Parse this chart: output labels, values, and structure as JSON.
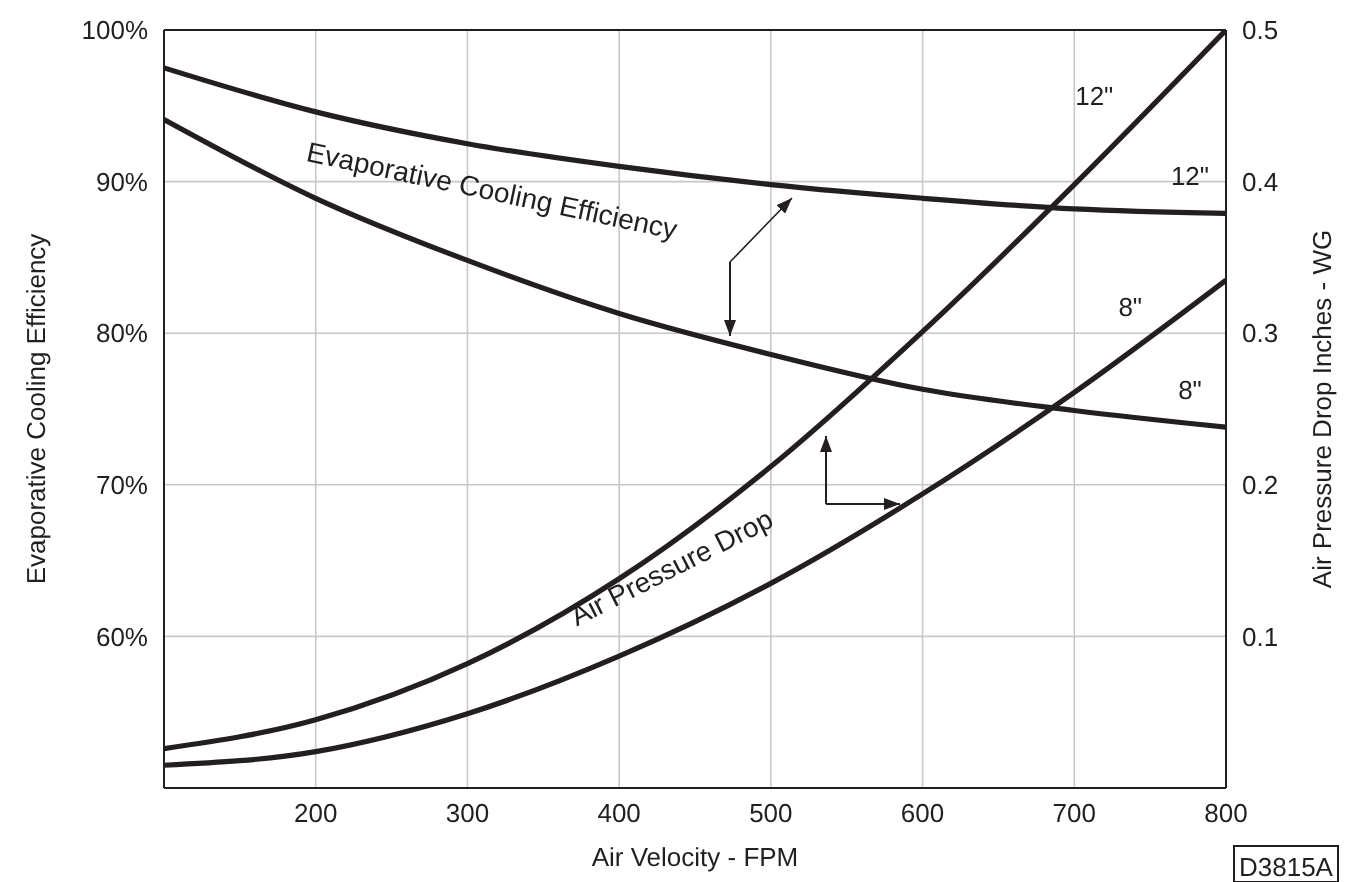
{
  "chart_data": {
    "type": "line",
    "xlabel": "Air Velocity - FPM",
    "ylabel": "Evaporative Cooling Efficiency",
    "y2label": "Air Pressure Drop Inches - WG",
    "x": [
      100,
      200,
      300,
      400,
      500,
      600,
      700,
      800
    ],
    "series": [
      {
        "name": "12\"",
        "color": "#231f20",
        "values": [
          97.5,
          94.6,
          92.5,
          91.0,
          89.8,
          88.9,
          88.2,
          87.9
        ]
      },
      {
        "name": "8\"",
        "color": "#231f20",
        "values": [
          94.1,
          88.9,
          84.8,
          81.3,
          78.6,
          76.3,
          74.9,
          73.8
        ]
      },
      {
        "name": "12\"",
        "color": "#231f20",
        "axis": "y2",
        "values": [
          0.026,
          0.045,
          0.082,
          0.138,
          0.212,
          0.301,
          0.398,
          0.5
        ]
      },
      {
        "name": "8\"",
        "color": "#231f20",
        "axis": "y2",
        "values": [
          0.015,
          0.024,
          0.049,
          0.087,
          0.135,
          0.194,
          0.261,
          0.335
        ]
      }
    ],
    "xlim": [
      100,
      800
    ],
    "xticks": [
      200,
      300,
      400,
      500,
      600,
      700,
      800
    ],
    "ylim": [
      50,
      100
    ],
    "yticks": [
      {
        "value": 60,
        "label": "60%"
      },
      {
        "value": 70,
        "label": "70%"
      },
      {
        "value": 80,
        "label": "80%"
      },
      {
        "value": 90,
        "label": "90%"
      },
      {
        "value": 100,
        "label": "100%"
      }
    ],
    "y2lim": [
      0,
      0.5
    ],
    "y2ticks": [
      0.1,
      0.2,
      0.3,
      0.4,
      0.5
    ],
    "grid": true,
    "marker": "none",
    "line_style": "solid",
    "annotations": [
      "Evaporative Cooling Efficiency",
      "Air Pressure Drop",
      "D3815A"
    ]
  }
}
